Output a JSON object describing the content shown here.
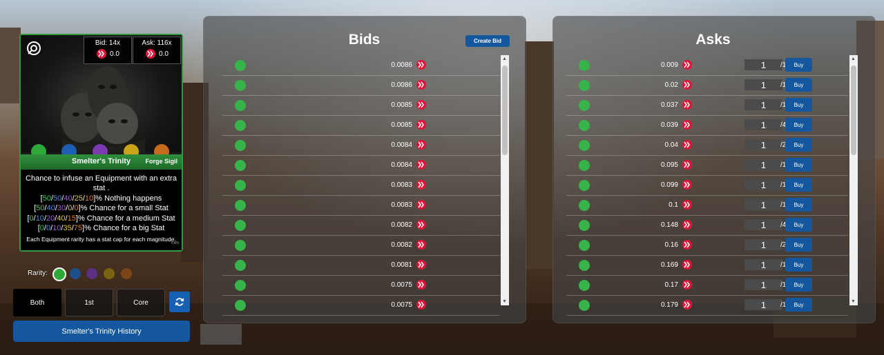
{
  "card": {
    "bid_label": "Bid: 14x",
    "bid_value": "0.0",
    "ask_label": "Ask: 116x",
    "ask_value": "0.0",
    "name": "Smelter's Trinity",
    "type": "Forge Sigil",
    "desc_line1": "Chance to infuse an Equipment with an extra stat .",
    "stats": [
      {
        "values": [
          "50",
          "50",
          "40",
          "25",
          "10"
        ],
        "text": "% Nothing happens"
      },
      {
        "values": [
          "50",
          "40",
          "30",
          "0",
          "0"
        ],
        "text": "% Chance for a small Stat"
      },
      {
        "values": [
          "0",
          "10",
          "20",
          "40",
          "15"
        ],
        "text": "% Chance for a medium Stat"
      },
      {
        "values": [
          "0",
          "0",
          "10",
          "35",
          "75"
        ],
        "text": "% Chance for a big Stat"
      }
    ],
    "footer": "Each Equipment rarity has a stat cap for each magnitude.",
    "signature": "Yxm"
  },
  "rarity_label": "Rarity:",
  "rarity_colors": [
    "#2fa83a",
    "#1d4f8c",
    "#5b2f86",
    "#7a6414",
    "#7a4417"
  ],
  "filters": [
    "Both",
    "1st",
    "Core"
  ],
  "active_filter": "Both",
  "history_label": "Smelter's Trinity History",
  "bids": {
    "title": "Bids",
    "create_label": "Create Bid",
    "prices": [
      "0.0086",
      "0.0086",
      "0.0085",
      "0.0085",
      "0.0084",
      "0.0084",
      "0.0083",
      "0.0083",
      "0.0082",
      "0.0082",
      "0.0081",
      "0.0075",
      "0.0075"
    ]
  },
  "asks": {
    "title": "Asks",
    "buy_label": "Buy",
    "rows": [
      {
        "price": "0.009",
        "qty": "1",
        "max": "/1"
      },
      {
        "price": "0.02",
        "qty": "1",
        "max": "/1"
      },
      {
        "price": "0.037",
        "qty": "1",
        "max": "/1"
      },
      {
        "price": "0.039",
        "qty": "1",
        "max": "/4"
      },
      {
        "price": "0.04",
        "qty": "1",
        "max": "/2"
      },
      {
        "price": "0.095",
        "qty": "1",
        "max": "/1"
      },
      {
        "price": "0.099",
        "qty": "1",
        "max": "/1"
      },
      {
        "price": "0.1",
        "qty": "1",
        "max": "/1"
      },
      {
        "price": "0.148",
        "qty": "1",
        "max": "/4"
      },
      {
        "price": "0.16",
        "qty": "1",
        "max": "/2"
      },
      {
        "price": "0.169",
        "qty": "1",
        "max": "/1"
      },
      {
        "price": "0.17",
        "qty": "1",
        "max": "/1"
      },
      {
        "price": "0.179",
        "qty": "1",
        "max": "/1"
      }
    ]
  },
  "colors": {
    "accent": "#14579f",
    "hive": "#e31337",
    "online": "#37b449"
  }
}
